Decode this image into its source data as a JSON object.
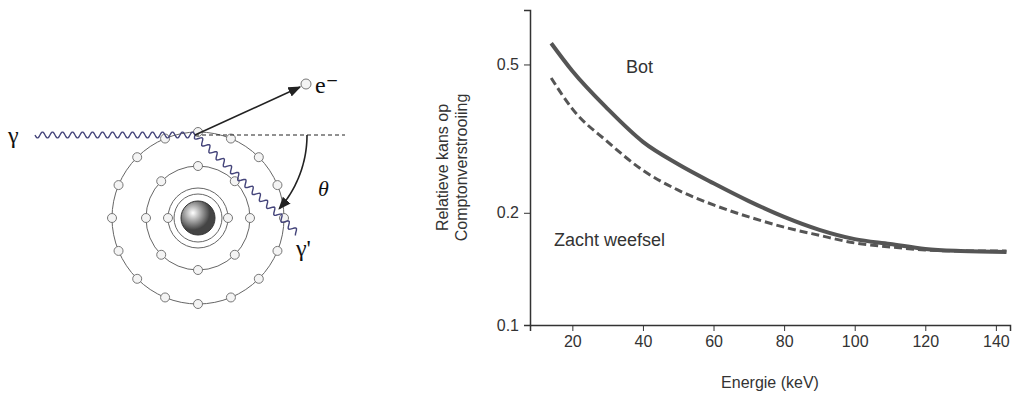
{
  "chart_data": {
    "type": "line",
    "x_label": "Energie (keV)",
    "y_label": "Relatieve kans op Comptonverstrooiing",
    "x": [
      14,
      20,
      30,
      40,
      50,
      60,
      70,
      80,
      90,
      100,
      110,
      120,
      130,
      143
    ],
    "series": [
      {
        "name": "Bot",
        "color": "#555555",
        "line_style": "solid",
        "values": [
          0.57,
          0.48,
          0.38,
          0.31,
          0.27,
          0.24,
          0.215,
          0.195,
          0.18,
          0.17,
          0.165,
          0.16,
          0.158,
          0.157
        ]
      },
      {
        "name": "Zacht weefsel",
        "color": "#555555",
        "line_style": "dashed",
        "values": [
          0.46,
          0.38,
          0.31,
          0.26,
          0.23,
          0.21,
          0.195,
          0.183,
          0.174,
          0.166,
          0.162,
          0.159,
          0.158,
          0.158
        ]
      }
    ],
    "xlim": [
      8,
      144
    ],
    "xticks": [
      20,
      40,
      60,
      80,
      100,
      120,
      140
    ],
    "ylim": [
      0.1,
      0.7
    ],
    "yticks": [
      0.1,
      0.2,
      0.5
    ],
    "log": "y",
    "grid": false
  },
  "diagram": {
    "labels": {
      "incident": "γ",
      "electron": "e⁻",
      "angle": "θ",
      "scattered": "γ'"
    }
  }
}
